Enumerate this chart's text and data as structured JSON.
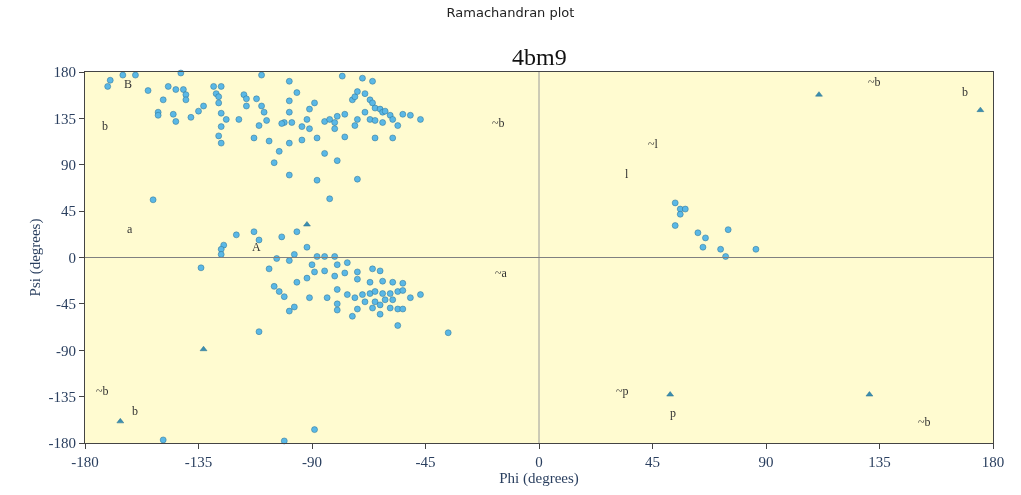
{
  "chart_data": {
    "type": "scatter",
    "title": "Ramachandran plot",
    "subtitle": "4bm9",
    "xlabel": "Phi (degrees)",
    "ylabel": "Psi (degrees)",
    "xlim": [
      -180,
      180
    ],
    "ylim": [
      -180,
      180
    ],
    "xticks": [
      -180,
      -135,
      -90,
      -45,
      0,
      45,
      90,
      135,
      180
    ],
    "yticks": [
      -180,
      -135,
      -90,
      -45,
      0,
      45,
      90,
      135,
      180
    ],
    "grid": false,
    "ref_lines": [
      {
        "axis": "x",
        "value": 0,
        "color": "#9a9a9a"
      },
      {
        "axis": "y",
        "value": 0,
        "color": "#808080"
      }
    ],
    "series": [
      {
        "color": "#5ab8e6",
        "marker": "circle",
        "x": [
          -170,
          -171,
          -165,
          -160,
          -142,
          -110,
          -78,
          -70,
          -66,
          -155,
          -147,
          -144,
          -141,
          -140,
          -140,
          -129,
          -126,
          -128,
          -127,
          -117,
          -116,
          -112,
          -99,
          -96,
          -149,
          -151,
          -151,
          -145,
          -144,
          -138,
          -135,
          -133,
          -127,
          -126,
          -124,
          -119,
          -126,
          -116,
          -110,
          -109,
          -99,
          -99,
          -101,
          -108,
          -111,
          -102,
          -98,
          -94,
          -91,
          -92,
          -91,
          -89,
          -85,
          -83,
          -80,
          -81,
          -81,
          -77,
          -74,
          -73,
          -72,
          -69,
          -67,
          -66,
          -65,
          -63,
          -62,
          -61,
          -59,
          -58,
          -56,
          -54,
          -51,
          -47,
          -69,
          -72,
          -73,
          -67,
          -65,
          -62,
          -77,
          -88,
          -94,
          -99,
          -107,
          -113,
          -127,
          -126,
          -65,
          -58,
          -103,
          -105,
          -99,
          -88,
          -72,
          -80,
          -85,
          -153,
          -83,
          -96,
          -120,
          -113,
          -111,
          -102,
          -125,
          -126,
          -126,
          -134,
          -107,
          -104,
          -99,
          -97,
          -92,
          -88,
          -85,
          -81,
          -90,
          -80,
          -76,
          -89,
          -85,
          -81,
          -77,
          -72,
          -66,
          -63,
          -72,
          -67,
          -62,
          -58,
          -54,
          -105,
          -103,
          -101,
          -96,
          -92,
          -91,
          -84,
          -80,
          -76,
          -73,
          -70,
          -67,
          -65,
          -62,
          -59,
          -56,
          -54,
          -51,
          -47,
          -69,
          -65,
          -61,
          -58,
          -66,
          -63,
          -59,
          -56,
          -54,
          -72,
          -80,
          -80,
          -74,
          -63,
          -56,
          -97,
          -99,
          -111,
          -36,
          -149,
          -101,
          -89,
          54,
          56,
          58,
          56,
          54,
          63,
          66,
          75,
          65,
          72,
          74,
          86
        ],
        "values": [
          172,
          166,
          177,
          177,
          179,
          177,
          176,
          174,
          171,
          162,
          166,
          163,
          163,
          158,
          153,
          166,
          166,
          159,
          156,
          158,
          154,
          154,
          171,
          160,
          153,
          141,
          138,
          139,
          132,
          136,
          142,
          147,
          150,
          140,
          134,
          134,
          127,
          147,
          147,
          141,
          152,
          141,
          131,
          133,
          128,
          130,
          131,
          127,
          125,
          134,
          144,
          150,
          132,
          134,
          137,
          131,
          125,
          139,
          153,
          156,
          161,
          159,
          153,
          150,
          145,
          144,
          141,
          142,
          138,
          134,
          128,
          139,
          138,
          134,
          141,
          134,
          128,
          134,
          133,
          131,
          117,
          116,
          114,
          111,
          113,
          116,
          118,
          111,
          116,
          116,
          103,
          92,
          80,
          75,
          76,
          94,
          101,
          56,
          57,
          25,
          22,
          25,
          17,
          20,
          12,
          8,
          3,
          -10,
          -11,
          -1,
          -3,
          3,
          10,
          1,
          1,
          1,
          -7,
          -7,
          -5,
          -14,
          -13,
          -18,
          -15,
          -14,
          -11,
          -13,
          -21,
          -24,
          -23,
          -24,
          -25,
          -28,
          -33,
          -38,
          -24,
          -20,
          -39,
          -39,
          -31,
          -36,
          -39,
          -36,
          -35,
          -33,
          -35,
          -35,
          -33,
          -32,
          -39,
          -36,
          -43,
          -43,
          -41,
          -41,
          -49,
          -46,
          -49,
          -50,
          -50,
          -50,
          -45,
          -51,
          -57,
          -55,
          -66,
          -48,
          -52,
          -72,
          -73,
          -177,
          -178,
          -167,
          53,
          47,
          47,
          42,
          31,
          24,
          19,
          27,
          10,
          8,
          1,
          8
        ]
      },
      {
        "color": "#3a8fb0",
        "marker": "triangle",
        "x": [
          -133,
          111,
          175,
          52,
          131,
          -166,
          -92
        ],
        "values": [
          -89,
          158,
          143,
          -133,
          -133,
          -159,
          32
        ]
      }
    ],
    "annotations": [
      "B",
      "b",
      "a",
      "A",
      "~b",
      "b",
      "~a",
      "~b",
      "~l",
      "l",
      "~b",
      "b",
      "~p",
      "p",
      "~b"
    ]
  }
}
